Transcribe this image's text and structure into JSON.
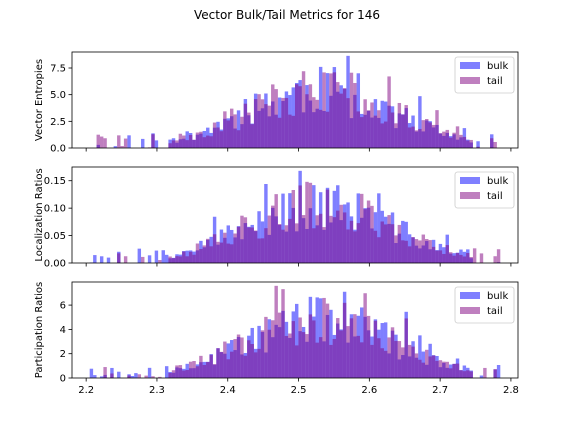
{
  "figure": {
    "title": "Vector Bulk/Tail Metrics for 146"
  },
  "colors": {
    "bulk": "#0000ff",
    "tail": "#800080",
    "bulk_alpha": 0.5,
    "tail_alpha": 0.5
  },
  "chart_data": [
    {
      "type": "bar",
      "title": "",
      "ylabel": "Vector Entropies",
      "xlim": [
        2.18,
        2.81
      ],
      "ylim": [
        0,
        9.0
      ],
      "yticks": [
        0.0,
        2.5,
        5.0,
        7.5
      ],
      "ytick_labels": [
        "0.0",
        "2.5",
        "5.0",
        "7.5"
      ],
      "show_xticklabels": false,
      "legend": "upper-right",
      "series": [
        {
          "name": "bulk",
          "seed": 11
        },
        {
          "name": "tail",
          "seed": 23
        }
      ]
    },
    {
      "type": "bar",
      "title": "",
      "ylabel": "Localization Ratios",
      "xlim": [
        2.18,
        2.81
      ],
      "ylim": [
        0,
        0.175
      ],
      "yticks": [
        0.0,
        0.05,
        0.1,
        0.15
      ],
      "ytick_labels": [
        "0.00",
        "0.05",
        "0.10",
        "0.15"
      ],
      "show_xticklabels": false,
      "legend": "upper-right",
      "series": [
        {
          "name": "bulk",
          "seed": 37
        },
        {
          "name": "tail",
          "seed": 41
        }
      ]
    },
    {
      "type": "bar",
      "title": "",
      "ylabel": "Participation Ratios",
      "xlim": [
        2.18,
        2.81
      ],
      "ylim": [
        0,
        7.9
      ],
      "yticks": [
        0,
        2,
        4,
        6
      ],
      "ytick_labels": [
        "0",
        "2",
        "4",
        "6"
      ],
      "show_xticklabels": true,
      "xticks": [
        2.2,
        2.3,
        2.4,
        2.5,
        2.6,
        2.7,
        2.8
      ],
      "xtick_labels": [
        "2.2",
        "2.3",
        "2.4",
        "2.5",
        "2.6",
        "2.7",
        "2.8"
      ],
      "legend": "upper-right",
      "series": [
        {
          "name": "bulk",
          "seed": 53
        },
        {
          "name": "tail",
          "seed": 67
        }
      ]
    }
  ]
}
